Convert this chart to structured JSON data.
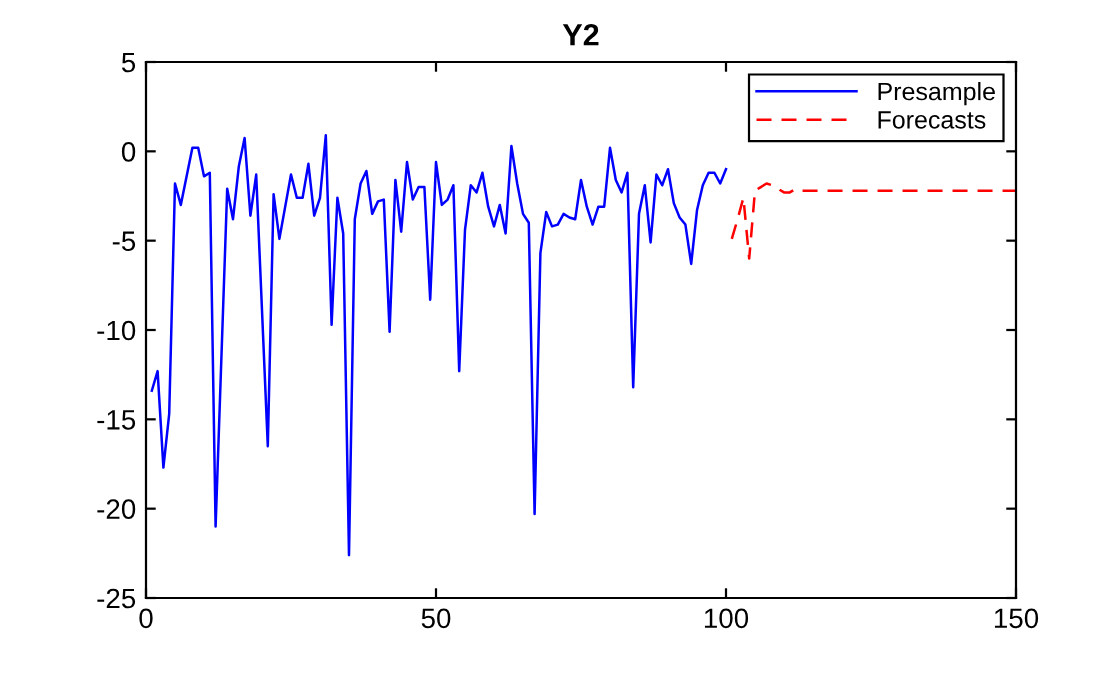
{
  "chart_data": {
    "type": "line",
    "title": "Y2",
    "series": [
      {
        "name": "Presample",
        "color": "#0000ff",
        "line_style": "solid",
        "x": [
          1,
          2,
          3,
          4,
          5,
          6,
          8,
          9,
          10,
          11,
          12,
          14,
          15,
          16,
          17,
          18,
          19,
          21,
          22,
          23,
          25,
          26,
          27,
          28,
          29,
          30,
          31,
          32,
          33,
          34,
          35,
          36,
          37,
          38,
          39,
          40,
          41,
          42,
          43,
          44,
          45,
          46,
          47,
          48,
          49,
          50,
          51,
          52,
          53,
          54,
          55,
          56,
          57,
          58,
          59,
          60,
          61,
          62,
          63,
          64,
          65,
          66,
          67,
          68,
          69,
          70,
          71,
          72,
          73,
          74,
          75,
          76,
          77,
          78,
          79,
          80,
          81,
          82,
          83,
          84,
          85,
          86,
          87,
          88,
          89,
          90,
          91,
          92,
          93,
          94,
          95,
          96,
          97,
          98,
          99,
          100
        ],
        "values": [
          -13.4,
          -12.3,
          -17.7,
          -14.7,
          -1.8,
          -3.0,
          0.2,
          0.2,
          -1.4,
          -1.2,
          -21.0,
          -2.1,
          -3.8,
          -0.85,
          0.75,
          -3.6,
          -1.3,
          -16.5,
          -2.4,
          -4.9,
          -1.3,
          -2.6,
          -2.6,
          -0.7,
          -3.6,
          -2.6,
          0.9,
          -9.7,
          -2.6,
          -4.6,
          -22.6,
          -3.8,
          -1.8,
          -1.1,
          -3.5,
          -2.8,
          -2.7,
          -10.1,
          -1.6,
          -4.5,
          -0.6,
          -2.7,
          -2.0,
          -2.0,
          -8.3,
          -0.6,
          -3.0,
          -2.7,
          -1.9,
          -12.3,
          -4.4,
          -1.9,
          -2.3,
          -1.2,
          -3.1,
          -4.2,
          -3.0,
          -4.6,
          0.3,
          -1.8,
          -3.5,
          -4.0,
          -20.3,
          -5.7,
          -3.4,
          -4.2,
          -4.1,
          -3.5,
          -3.7,
          -3.8,
          -1.6,
          -3.1,
          -4.1,
          -3.1,
          -3.1,
          0.2,
          -1.6,
          -2.3,
          -1.2,
          -13.2,
          -3.5,
          -1.9,
          -5.1,
          -1.3,
          -1.9,
          -1.0,
          -2.9,
          -3.7,
          -4.1,
          -6.3,
          -3.3,
          -1.9,
          -1.2,
          -1.2,
          -1.8,
          -1.0
        ]
      },
      {
        "name": "Forecasts",
        "color": "#ff0000",
        "line_style": "dashed",
        "x": [
          101,
          102,
          103,
          104,
          105,
          106,
          107,
          108,
          109,
          110,
          111,
          112,
          113,
          120,
          130,
          140,
          150
        ],
        "values": [
          -4.9,
          -3.8,
          -2.6,
          -6.0,
          -2.2,
          -2.0,
          -1.8,
          -1.9,
          -2.1,
          -2.3,
          -2.3,
          -2.1,
          -2.2,
          -2.2,
          -2.2,
          -2.2,
          -2.2
        ]
      }
    ],
    "xlim": [
      0,
      150
    ],
    "xticks": [
      0,
      50,
      100,
      150
    ],
    "ylim": [
      -25,
      5
    ],
    "yticks": [
      -25,
      -20,
      -15,
      -10,
      -5,
      0,
      5
    ],
    "grid": false,
    "legend": "top right"
  }
}
